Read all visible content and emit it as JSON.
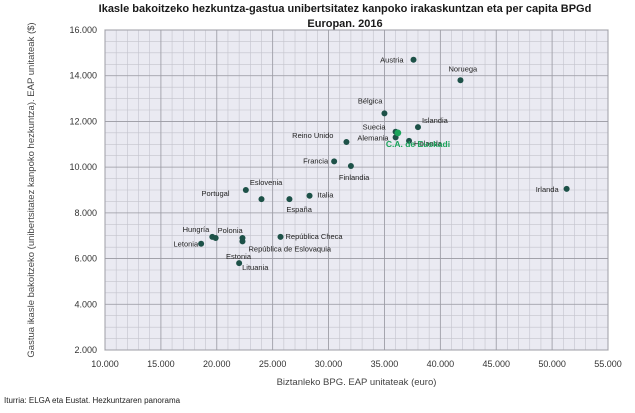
{
  "chart_data": {
    "type": "scatter",
    "title": "Ikasle bakoitzeko hezkuntza-gastua unibertsitatez kanpoko irakaskuntzan eta per capita BPGd\nEuropan. 2016",
    "xlabel": "Biztanleko BPG. EAP unitateak (euro)",
    "ylabel": "Gastua ikasle bakoitzeko (unibertsitatez kanpoko hezkuntza). EAP unitateak ($)",
    "xlim": [
      10000,
      55000
    ],
    "ylim": [
      2000,
      16000
    ],
    "x_ticks": [
      "10.000",
      "15.000",
      "20.000",
      "25.000",
      "30.000",
      "35.000",
      "40.000",
      "45.000",
      "50.000",
      "55.000"
    ],
    "y_ticks": [
      "2.000",
      "4.000",
      "6.000",
      "8.000",
      "10.000",
      "12.000",
      "14.000",
      "16.000"
    ],
    "grid": true,
    "point_color": "#1d5148",
    "highlight_color": "#1aa35a",
    "points": [
      {
        "label": "Austria",
        "x": 37600,
        "y": 14700
      },
      {
        "label": "Noruega",
        "x": 41800,
        "y": 13800
      },
      {
        "label": "Bélgica",
        "x": 35000,
        "y": 12350
      },
      {
        "label": "Islandia",
        "x": 38000,
        "y": 11750
      },
      {
        "label": "Suecia",
        "x": 36000,
        "y": 11550
      },
      {
        "label": "Reino Unido",
        "x": 31600,
        "y": 11100
      },
      {
        "label": "Alemania",
        "x": 36000,
        "y": 11300
      },
      {
        "label": "Holanda",
        "x": 37200,
        "y": 11150
      },
      {
        "label": "C.A. de Euskadi",
        "x": 36200,
        "y": 11500,
        "highlight": true
      },
      {
        "label": "Francia",
        "x": 30500,
        "y": 10250
      },
      {
        "label": "Finlandia",
        "x": 32000,
        "y": 10050
      },
      {
        "label": "Irlanda",
        "x": 51300,
        "y": 9050
      },
      {
        "label": "Eslovenia",
        "x": 22600,
        "y": 9000
      },
      {
        "label": "Portugal",
        "x": 24000,
        "y": 8600
      },
      {
        "label": "Italia",
        "x": 28300,
        "y": 8750
      },
      {
        "label": "España",
        "x": 26500,
        "y": 8600
      },
      {
        "label": "Hungría",
        "x": 19600,
        "y": 6950
      },
      {
        "label": "Polonia",
        "x": 19900,
        "y": 6900
      },
      {
        "label": "República Checa",
        "x": 25700,
        "y": 6950
      },
      {
        "label": "Letonia",
        "x": 18600,
        "y": 6650
      },
      {
        "label": "República de Eslovaquia",
        "x": 22300,
        "y": 6750
      },
      {
        "label": "Estonia",
        "x": 22300,
        "y": 6900
      },
      {
        "label": "Lituania",
        "x": 22000,
        "y": 5800
      }
    ]
  },
  "source": "Iturria: ELGA eta Eustat. Hezkuntzaren panorama"
}
